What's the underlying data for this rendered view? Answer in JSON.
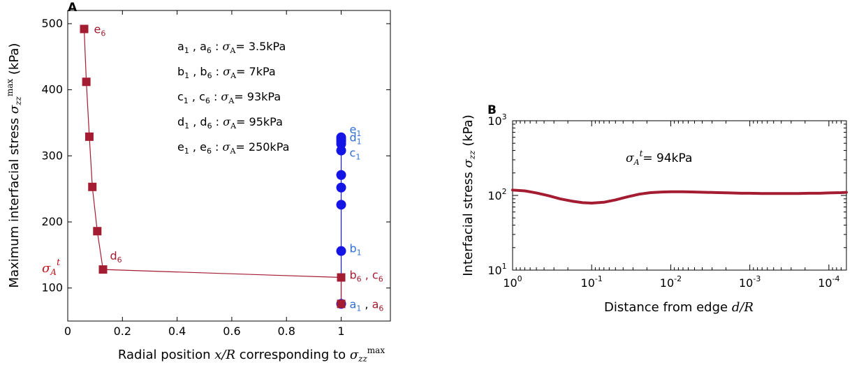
{
  "chart_data": [
    {
      "panel_label": "A",
      "type": "scatter",
      "xlabel": "Radial position x/R corresponding to σzz^max",
      "ylabel": "Maximum interfacial stress σzz^max (kPa)",
      "xlabel_parts": {
        "prefix": "Radial position ",
        "var": "x/R",
        "mid": " corresponding to ",
        "sym": "σ",
        "sub": "zz",
        "sup": "max"
      },
      "ylabel_parts": {
        "prefix": "Maximum interfacial stress ",
        "sym": "σ",
        "sub": "zz",
        "sup": "max",
        "suffix": " (kPa)"
      },
      "xlim": [
        0,
        1.18
      ],
      "ylim": [
        50,
        520
      ],
      "x_ticks": [
        0,
        0.2,
        0.4,
        0.6,
        0.8,
        1
      ],
      "x_tick_labels": [
        "0",
        "0.2",
        "0.4",
        "0.6",
        "0.8",
        "1"
      ],
      "y_ticks": [
        100,
        200,
        300,
        400,
        500
      ],
      "y_tick_labels": [
        "100",
        "200",
        "300",
        "400",
        "500"
      ],
      "grid": false,
      "series": [
        {
          "color": "#a31c31",
          "marker": "square",
          "x": [
            0.06,
            0.068,
            0.079,
            0.09,
            0.108,
            0.129,
            1.0,
            1.0
          ],
          "y": [
            492,
            412,
            329,
            253,
            186,
            128,
            116,
            76
          ]
        },
        {
          "color": "#1414e6",
          "marker": "circle",
          "x": [
            1,
            1,
            1,
            1,
            1,
            1,
            1,
            1,
            1,
            1
          ],
          "y": [
            76,
            156,
            226,
            252,
            271,
            308,
            318,
            322,
            325,
            328
          ]
        }
      ],
      "point_labels": [
        {
          "text": "e6",
          "main": "e",
          "sub": "6",
          "x": 0.06,
          "y": 492,
          "color": "#a31c31"
        },
        {
          "text": "d6",
          "main": "d",
          "sub": "6",
          "x": 0.129,
          "y": 128,
          "color": "#a31c31"
        },
        {
          "text": "b6 , c6",
          "main": "b",
          "sub": "6",
          "main2": " , c",
          "sub2": "6",
          "x": 1.0,
          "y": 116,
          "color": "#a31c31"
        },
        {
          "text": "e1",
          "main": "e",
          "sub": "1",
          "x": 1.0,
          "y": 328,
          "color": "#2f6fd6"
        },
        {
          "text": "d1",
          "main": "d",
          "sub": "1",
          "x": 1.0,
          "y": 322,
          "color": "#2f6fd6"
        },
        {
          "text": "c1",
          "main": "c",
          "sub": "1",
          "x": 1.0,
          "y": 308,
          "color": "#2f6fd6"
        },
        {
          "text": "b1",
          "main": "b",
          "sub": "1",
          "x": 1.0,
          "y": 156,
          "color": "#2f6fd6"
        }
      ],
      "bottom_label": {
        "a_main": "a",
        "a_sub": "1",
        "sep": " , ",
        "b_main": "a",
        "b_sub": "6",
        "a_color": "#2f6fd6",
        "b_color": "#a31c31"
      },
      "annotations": [
        {
          "k1": "a",
          "s1": "1",
          "k2": "a",
          "s2": "6",
          "value": "3.5kPa"
        },
        {
          "k1": "b",
          "s1": "1",
          "k2": "b",
          "s2": "6",
          "value": "7kPa"
        },
        {
          "k1": "c",
          "s1": "1",
          "k2": "c",
          "s2": "6",
          "value": "93kPa"
        },
        {
          "k1": "d",
          "s1": "1",
          "k2": "d",
          "s2": "6",
          "value": "95kPa"
        },
        {
          "k1": "e",
          "s1": "1",
          "k2": "e",
          "s2": "6",
          "value": "250kPa"
        }
      ],
      "annotation_template": {
        "sep": " , ",
        "colon": " : ",
        "sym": "σ",
        "sub": "A",
        "eq": "= "
      },
      "sigma_label": {
        "sym": "σ",
        "sub": "A",
        "sup": "t",
        "color": "#c0141e"
      }
    },
    {
      "panel_label": "B",
      "type": "line",
      "xlabel": "Distance from edge d/R",
      "ylabel": "Interfacial stress σzz (kPa)",
      "xlabel_parts": {
        "prefix": "Distance from edge ",
        "var": "d/R"
      },
      "ylabel_parts": {
        "prefix": "Interfacial stress ",
        "sym": "σ",
        "sub": "zz",
        "suffix": " (kPa)"
      },
      "x_scale": "log",
      "x_reversed": true,
      "xlim": [
        1,
        6e-05
      ],
      "y_scale": "log",
      "ylim": [
        10,
        1000
      ],
      "x_ticks": [
        1,
        0.1,
        0.01,
        0.001,
        0.0001
      ],
      "x_tick_labels": [
        {
          "base": "10",
          "exp": "0"
        },
        {
          "base": "10",
          "exp": "-1"
        },
        {
          "base": "10",
          "exp": "-2"
        },
        {
          "base": "10",
          "exp": "-3"
        },
        {
          "base": "10",
          "exp": "-4"
        }
      ],
      "y_ticks": [
        10,
        100,
        1000
      ],
      "y_tick_labels": [
        {
          "base": "10",
          "exp": "1"
        },
        {
          "base": "10",
          "exp": "2"
        },
        {
          "base": "10",
          "exp": "3"
        }
      ],
      "grid": false,
      "series": [
        {
          "color": "#a31c31",
          "x": [
            1,
            0.7,
            0.5,
            0.35,
            0.25,
            0.18,
            0.13,
            0.1,
            0.07,
            0.05,
            0.035,
            0.025,
            0.018,
            0.013,
            0.01,
            0.007,
            0.005,
            0.0035,
            0.0025,
            0.0018,
            0.0013,
            0.001,
            0.0007,
            0.0005,
            0.00035,
            0.00025,
            0.00018,
            0.00013,
            0.0001,
            7e-05,
            6e-05
          ],
          "y": [
            118,
            115,
            108,
            99,
            90,
            84,
            80,
            79,
            81,
            87,
            96,
            104,
            109,
            111,
            112,
            112,
            111,
            110,
            109,
            108,
            107,
            107,
            106,
            106,
            106,
            106,
            107,
            107,
            108,
            109,
            110
          ]
        }
      ],
      "annotation": {
        "sym": "σ",
        "sub": "A",
        "sup": "t",
        "eq": "= ",
        "value": "94kPa"
      }
    }
  ]
}
